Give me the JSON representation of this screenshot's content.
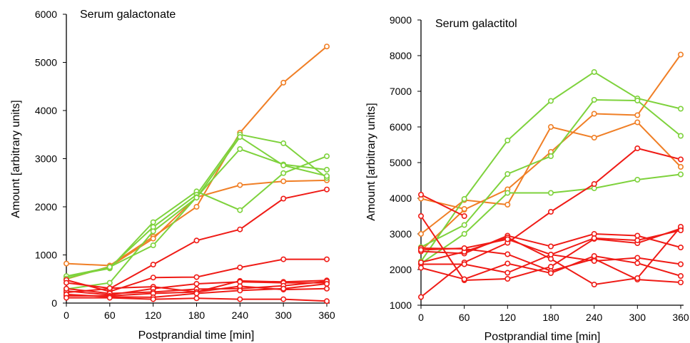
{
  "colors": {
    "green": "#7ed23c",
    "orange": "#f07f26",
    "red": "#ef1b16",
    "axis": "#000000"
  },
  "chart_data": [
    {
      "type": "line",
      "title": "Serum galactonate",
      "xlabel": "Postprandial time [min]",
      "ylabel": "Amount [arbitrary units]",
      "x": [
        0,
        60,
        120,
        180,
        240,
        300,
        360
      ],
      "xticks": [
        "0",
        "60",
        "120",
        "180",
        "240",
        "300",
        "360"
      ],
      "yticks": [
        "0",
        "1000",
        "2000",
        "3000",
        "4000",
        "5000",
        "6000"
      ],
      "ylim": [
        0,
        6000
      ],
      "grid": false,
      "series": [
        {
          "color": "orange",
          "values": [
            820,
            780,
            1380,
            2000,
            3540,
            4580,
            5330
          ]
        },
        {
          "color": "orange",
          "values": [
            500,
            760,
            1340,
            2200,
            2450,
            2530,
            2550
          ]
        },
        {
          "color": "green",
          "values": [
            550,
            720,
            1680,
            2320,
            1930,
            2700,
            3050
          ]
        },
        {
          "color": "green",
          "values": [
            560,
            740,
            1580,
            2250,
            3500,
            3320,
            2600
          ]
        },
        {
          "color": "green",
          "values": [
            510,
            750,
            1200,
            2200,
            3200,
            2880,
            2770
          ]
        },
        {
          "color": "green",
          "values": [
            290,
            420,
            1490,
            2190,
            3450,
            2860,
            2640
          ]
        },
        {
          "color": "red",
          "values": [
            220,
            300,
            800,
            1300,
            1530,
            2170,
            2360
          ]
        },
        {
          "color": "red",
          "values": [
            480,
            240,
            530,
            540,
            740,
            910,
            910
          ]
        },
        {
          "color": "red",
          "values": [
            420,
            310,
            340,
            230,
            460,
            440,
            470
          ]
        },
        {
          "color": "red",
          "values": [
            250,
            170,
            300,
            400,
            440,
            420,
            420
          ]
        },
        {
          "color": "red",
          "values": [
            300,
            200,
            230,
            290,
            300,
            360,
            450
          ]
        },
        {
          "color": "red",
          "values": [
            150,
            150,
            200,
            230,
            350,
            280,
            300
          ]
        },
        {
          "color": "red",
          "values": [
            180,
            130,
            120,
            200,
            260,
            300,
            400
          ]
        },
        {
          "color": "red",
          "values": [
            110,
            110,
            80,
            100,
            80,
            80,
            40
          ]
        }
      ]
    },
    {
      "type": "line",
      "title": "Serum galactitol",
      "xlabel": "Postprandial time [min]",
      "ylabel": "Amount [arbitrary units]",
      "x": [
        0,
        60,
        120,
        180,
        240,
        300,
        360
      ],
      "xticks": [
        "0",
        "60",
        "120",
        "180",
        "240",
        "300",
        "360"
      ],
      "yticks": [
        "1000",
        "2000",
        "3000",
        "4000",
        "5000",
        "6000",
        "7000",
        "8000",
        "9000"
      ],
      "ylim": [
        1000,
        9000
      ],
      "grid": false,
      "series": [
        {
          "color": "orange",
          "values": [
            3000,
            3950,
            3820,
            6000,
            5700,
            6130,
            4880
          ]
        },
        {
          "color": "orange",
          "values": [
            2530,
            3680,
            4250,
            5300,
            6370,
            6330,
            8030
          ]
        },
        {
          "color": "orange",
          "values": [
            3990,
            3700,
            null,
            null,
            null,
            null,
            null
          ]
        },
        {
          "color": "green",
          "values": [
            2230,
            3980,
            5620,
            6730,
            7540,
            6800,
            6510
          ]
        },
        {
          "color": "green",
          "values": [
            2630,
            3250,
            4680,
            5180,
            6760,
            6740,
            5750
          ]
        },
        {
          "color": "green",
          "values": [
            2170,
            3000,
            4150,
            4150,
            4280,
            4520,
            4670
          ]
        },
        {
          "color": "red",
          "values": [
            4100,
            3500,
            null,
            null,
            null,
            null,
            null
          ]
        },
        {
          "color": "red",
          "values": [
            1230,
            2200,
            2750,
            3620,
            4400,
            5400,
            5090
          ]
        },
        {
          "color": "red",
          "values": [
            3500,
            1700,
            1740,
            2080,
            2860,
            2740,
            3150
          ]
        },
        {
          "color": "red",
          "values": [
            2510,
            2450,
            2950,
            2650,
            3000,
            2950,
            2620
          ]
        },
        {
          "color": "red",
          "values": [
            2600,
            2580,
            2430,
            1960,
            2300,
            1720,
            1640
          ]
        },
        {
          "color": "red",
          "values": [
            2150,
            2150,
            1910,
            2420,
            2240,
            2330,
            2150
          ]
        },
        {
          "color": "red",
          "values": [
            2050,
            1730,
            2170,
            1900,
            2380,
            2180,
            1820
          ]
        },
        {
          "color": "red",
          "values": [
            2200,
            2500,
            2900,
            2300,
            1580,
            1760,
            3200
          ]
        },
        {
          "color": "red",
          "values": [
            2550,
            2600,
            2850,
            2420,
            2880,
            2820,
            3100
          ]
        }
      ]
    }
  ]
}
